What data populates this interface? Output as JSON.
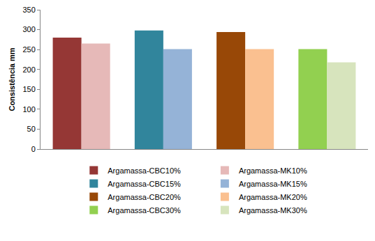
{
  "chart_data": {
    "type": "bar",
    "ylabel": "Consistência mm",
    "categories": [
      null,
      null,
      null,
      null
    ],
    "series": [
      {
        "name": "Argamassa-CBC10%",
        "color": "#953735",
        "values": [
          280,
          null,
          null,
          null
        ]
      },
      {
        "name": "Argamassa-MK10%",
        "color": "#e6b9b8",
        "values": [
          265,
          null,
          null,
          null
        ]
      },
      {
        "name": "Argamassa-CBC15%",
        "color": "#31859c",
        "values": [
          null,
          298,
          null,
          null
        ]
      },
      {
        "name": "Argamassa-MK15%",
        "color": "#95b3d7",
        "values": [
          null,
          251,
          null,
          null
        ]
      },
      {
        "name": "Argamassa-CBC20%",
        "color": "#984807",
        "values": [
          null,
          null,
          294,
          null
        ]
      },
      {
        "name": "Argamassa-MK20%",
        "color": "#fac090",
        "values": [
          null,
          null,
          251,
          null
        ]
      },
      {
        "name": "Argamassa-CBC30%",
        "color": "#92d050",
        "values": [
          null,
          null,
          null,
          251
        ]
      },
      {
        "name": "Argamassa-MK30%",
        "color": "#d7e4bd",
        "values": [
          null,
          null,
          null,
          218
        ]
      }
    ],
    "ylim": [
      0,
      350
    ],
    "yticks": [
      0,
      50,
      100,
      150,
      200,
      250,
      300,
      350
    ],
    "grid": false,
    "legend": "bottom",
    "tick_labels": "y"
  }
}
